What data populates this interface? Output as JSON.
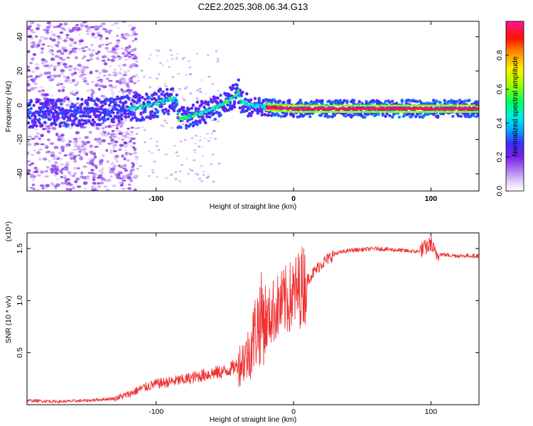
{
  "title": "C2E2.2025.308.06.34.G13",
  "chart_data": [
    {
      "type": "heatmap",
      "title": "C2E2.2025.308.06.34.G13",
      "xlabel": "Height of straight line (km)",
      "ylabel": "Frequency (Hz)",
      "xlim": [
        -194,
        135
      ],
      "ylim": [
        -50,
        49
      ],
      "x_ticks": [
        -100,
        0,
        100
      ],
      "y_ticks": [
        -40,
        -20,
        0,
        20,
        40
      ],
      "colorbar": {
        "label": "Normalized spectral amplitude",
        "range": [
          0,
          1
        ],
        "ticks": [
          "0.0",
          "0.2",
          "0.4",
          "0.6",
          "0.8"
        ],
        "tick_values": [
          0.0,
          0.2,
          0.4,
          0.6,
          0.8
        ],
        "colors": [
          "#ffffff",
          "#d6bff5",
          "#8a2be2",
          "#2020ff",
          "#00ccff",
          "#00ff66",
          "#ccff00",
          "#ff9900",
          "#ff0000",
          "#ff1493"
        ]
      },
      "ridge": {
        "description_free": true,
        "x": [
          -194,
          -160,
          -130,
          -110,
          -95,
          -85,
          -84,
          -70,
          -55,
          -45,
          -40,
          -38,
          -30,
          -20,
          0,
          20,
          50,
          80,
          100,
          135
        ],
        "y": [
          -5,
          -4,
          -3,
          -1,
          2,
          4,
          -8,
          -5,
          -1,
          4,
          8,
          2,
          0,
          -1,
          -2,
          -2,
          -2,
          -2,
          -2,
          -2
        ]
      }
    },
    {
      "type": "line",
      "xlabel": "Height of straight line (km)",
      "ylabel": "SNR (10 * v/v)",
      "y_multiplier": "(x10⁴)",
      "xlim": [
        -194,
        135
      ],
      "ylim": [
        0,
        1.65
      ],
      "x_ticks": [
        -100,
        0,
        100
      ],
      "y_ticks": [
        0.5,
        1.0,
        1.5
      ],
      "y_tick_labels": [
        "0.5",
        "1.0",
        "1.5"
      ],
      "series": [
        {
          "name": "SNR",
          "color": "#ee3333",
          "x": [
            -194,
            -170,
            -150,
            -130,
            -120,
            -110,
            -100,
            -90,
            -80,
            -70,
            -60,
            -50,
            -40,
            -32,
            -28,
            -25,
            -22,
            -20,
            -15,
            -10,
            -5,
            0,
            10,
            20,
            30,
            40,
            50,
            60,
            70,
            80,
            90,
            95,
            98,
            100,
            103,
            110,
            120,
            135
          ],
          "y": [
            0.04,
            0.03,
            0.04,
            0.06,
            0.1,
            0.16,
            0.2,
            0.22,
            0.24,
            0.27,
            0.3,
            0.32,
            0.38,
            0.5,
            0.7,
            0.8,
            0.85,
            0.78,
            0.9,
            0.95,
            1.0,
            1.05,
            1.2,
            1.35,
            1.45,
            1.48,
            1.49,
            1.5,
            1.49,
            1.48,
            1.47,
            1.5,
            1.52,
            1.55,
            1.45,
            1.44,
            1.43,
            1.43
          ]
        }
      ]
    }
  ]
}
